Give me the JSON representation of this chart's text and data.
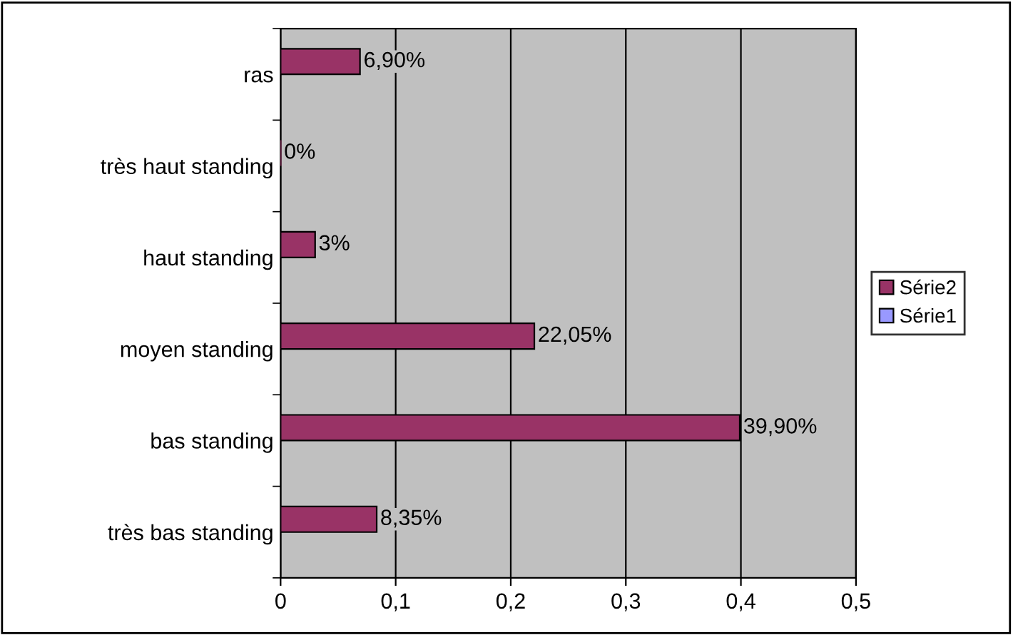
{
  "chart_data": {
    "type": "bar",
    "orientation": "horizontal",
    "categories": [
      "ras",
      "très haut standing",
      "haut standing",
      "moyen standing",
      "bas standing",
      "très bas standing"
    ],
    "series": [
      {
        "name": "Série2",
        "color": "#993366",
        "values": [
          0.069,
          0,
          0.03,
          0.2205,
          0.399,
          0.0835
        ],
        "value_labels": [
          "6,90%",
          "0%",
          "3%",
          "22,05%",
          "39,90%",
          "8,35%"
        ]
      },
      {
        "name": "Série1",
        "color": "#9999ff",
        "values": [
          null,
          null,
          null,
          null,
          null,
          null
        ]
      }
    ],
    "xlim": [
      0,
      0.5
    ],
    "xticks": [
      0,
      {
        "value": 0.1,
        "label": "0,1"
      },
      {
        "value": 0.2,
        "label": "0,2"
      },
      {
        "value": 0.3,
        "label": "0,3"
      },
      {
        "value": 0.4,
        "label": "0,4"
      },
      {
        "value": 0.5,
        "label": "0,5"
      }
    ],
    "grid": "x",
    "legend": "right"
  }
}
